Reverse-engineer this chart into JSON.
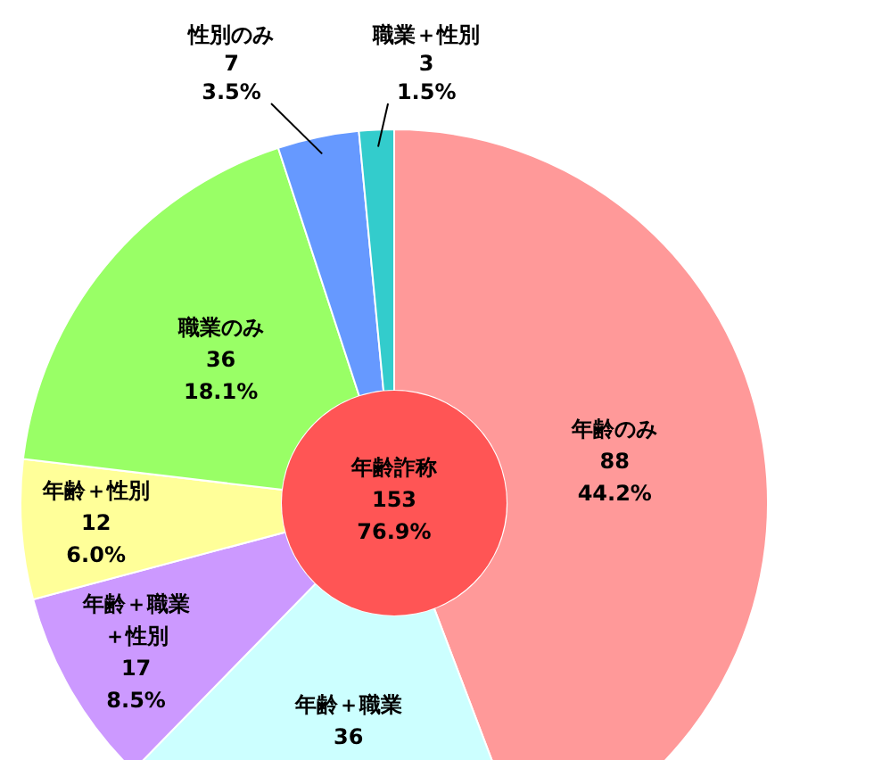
{
  "chart_data": {
    "type": "donut",
    "categories": [
      "年齢のみ",
      "年齢＋職業",
      "年齢＋職業＋性別",
      "年齢＋性別",
      "職業のみ",
      "性別のみ",
      "職業＋性別"
    ],
    "values": [
      88,
      36,
      17,
      12,
      36,
      7,
      3
    ],
    "colors": [
      "#ff9999",
      "#ccffff",
      "#cc99ff",
      "#ffff99",
      "#99ff66",
      "#6699ff",
      "#33cccc"
    ],
    "value_labels": [
      "88\n44.2%",
      "36",
      "17\n8.5%",
      "12\n6.0%",
      "36\n18.1%",
      "7\n3.5%",
      "3\n1.5%"
    ],
    "annotations": [
      "年齢詐称\n153\n76.9%"
    ]
  }
}
